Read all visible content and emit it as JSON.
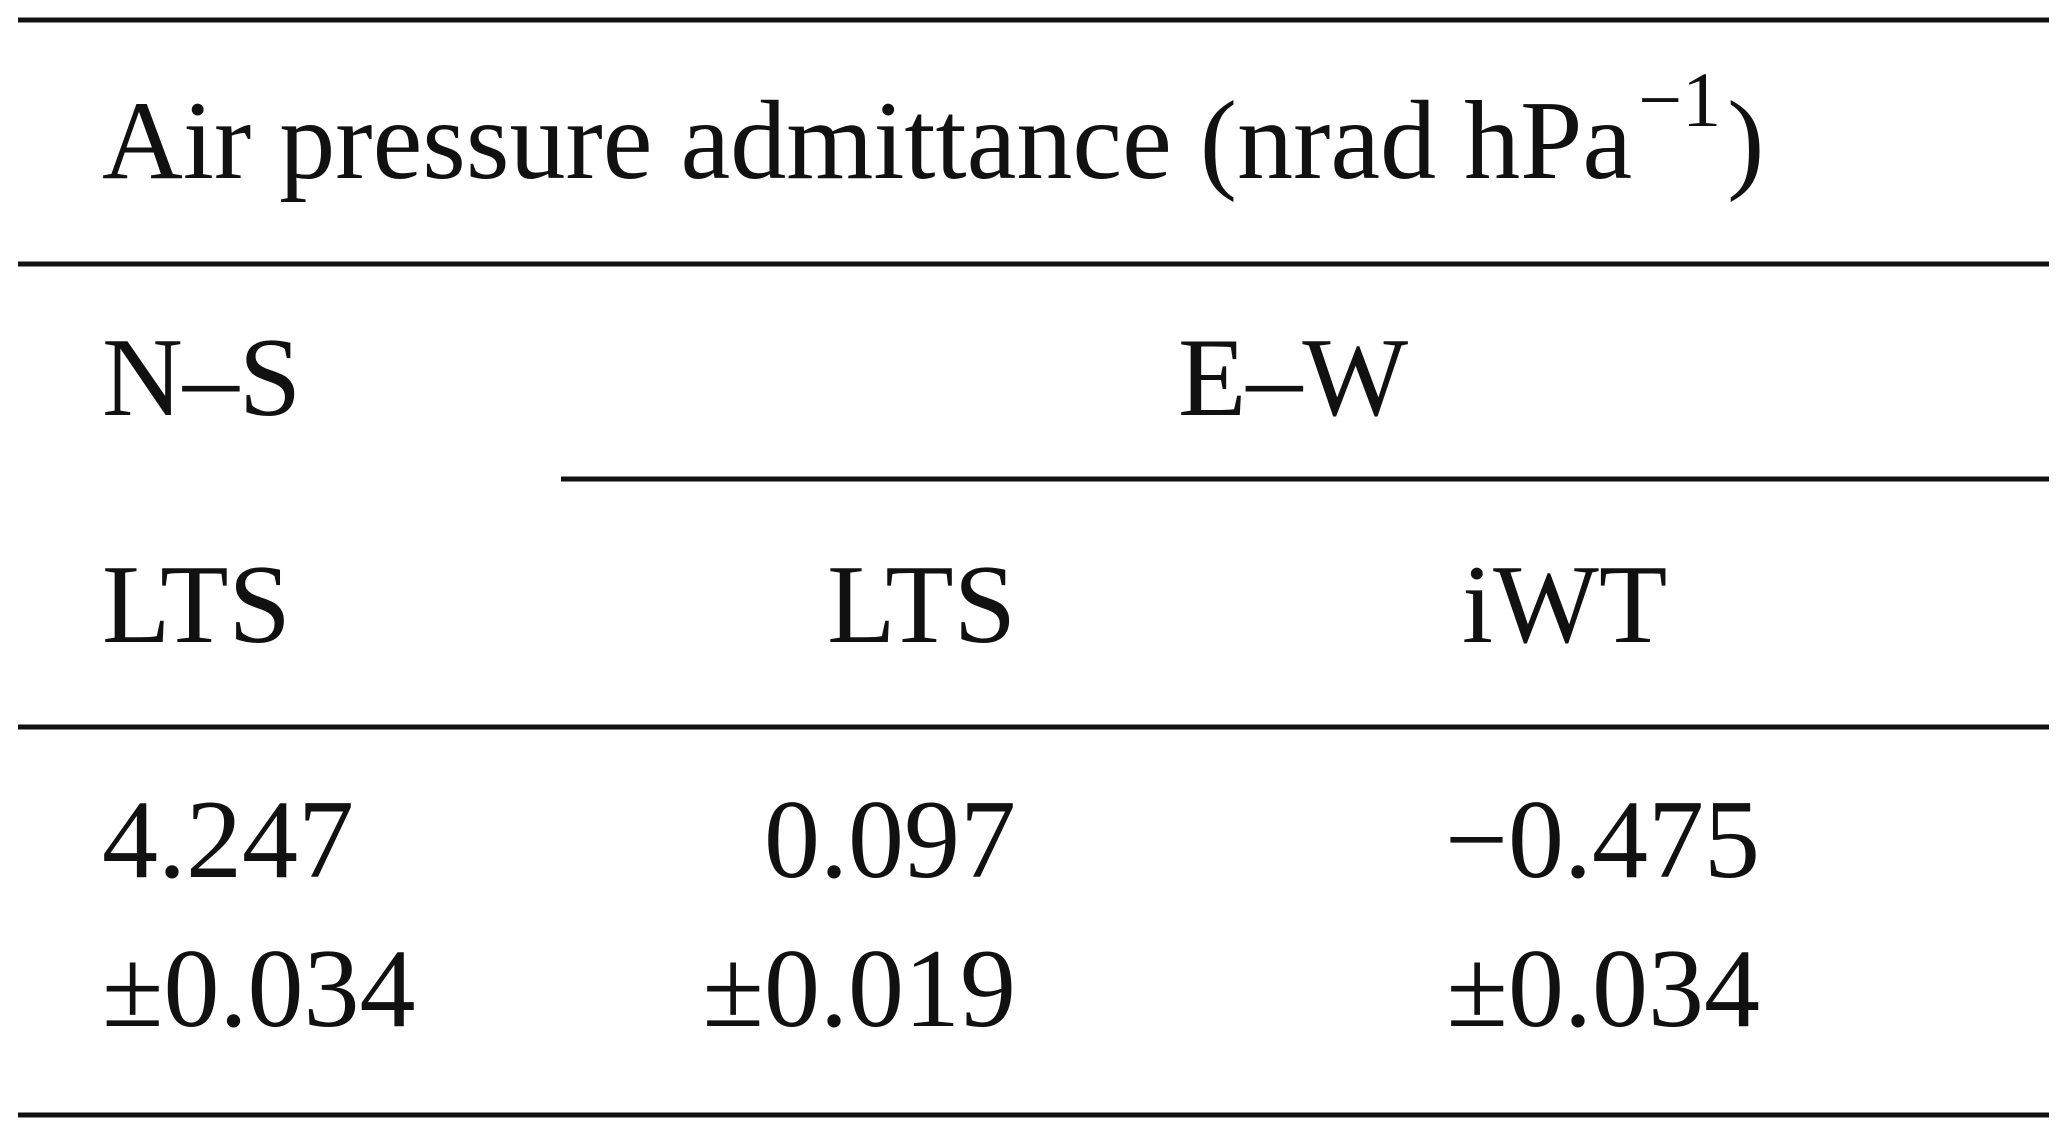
{
  "header": {
    "title": "Air pressure admittance (nrad hPa",
    "title_exponent": "−1",
    "title_close": ")"
  },
  "columns": {
    "groups": [
      "N–S",
      "E–W"
    ],
    "methods": [
      "LTS",
      "LTS",
      "iWT"
    ]
  },
  "table": {
    "rows": [
      [
        "4.247",
        "0.097",
        "−0.475"
      ],
      [
        "±0.034",
        "±0.019",
        "±0.034"
      ]
    ]
  }
}
